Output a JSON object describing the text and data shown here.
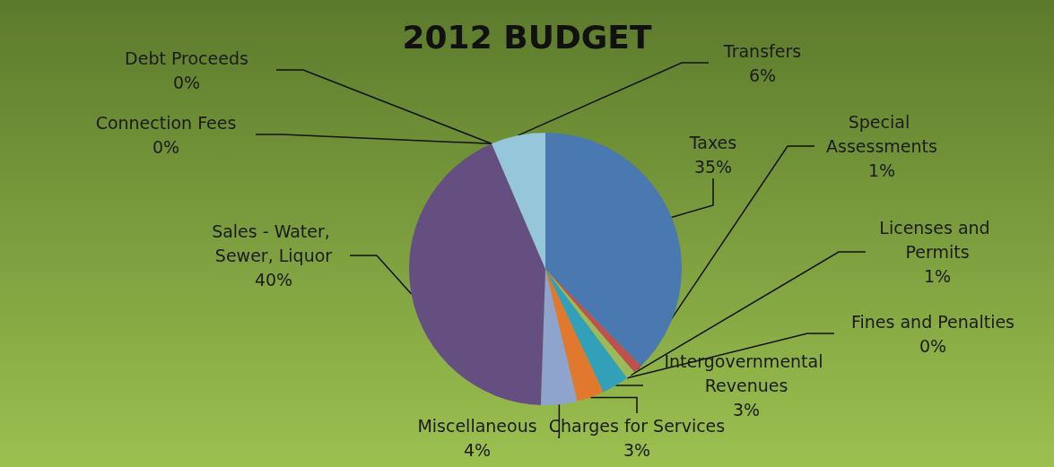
{
  "chart_data": {
    "type": "pie",
    "title": "2012 BUDGET",
    "categories": [
      "Taxes",
      "Special Assessments",
      "Licenses and Permits",
      "Fines and Penalties",
      "Intergovernmental Revenues",
      "Charges for Services",
      "Miscellaneous",
      "Sales - Water, Sewer, Liquor",
      "Connection Fees",
      "Debt Proceeds",
      "Transfers"
    ],
    "values": [
      35,
      1,
      1,
      0,
      3,
      3,
      4,
      40,
      0,
      0,
      6
    ],
    "value_labels": [
      "35%",
      "1%",
      "1%",
      "0%",
      "3%",
      "3%",
      "4%",
      "40%",
      "0%",
      "0%",
      "6%"
    ],
    "colors": [
      "#4a78b0",
      "#c0504d",
      "#9bbb59",
      "#8064a2",
      "#31a0b8",
      "#e0782e",
      "#8ea4cc",
      "#654f80",
      "#4bacc6",
      "#f79646",
      "#95c6d9"
    ],
    "legend": false
  }
}
